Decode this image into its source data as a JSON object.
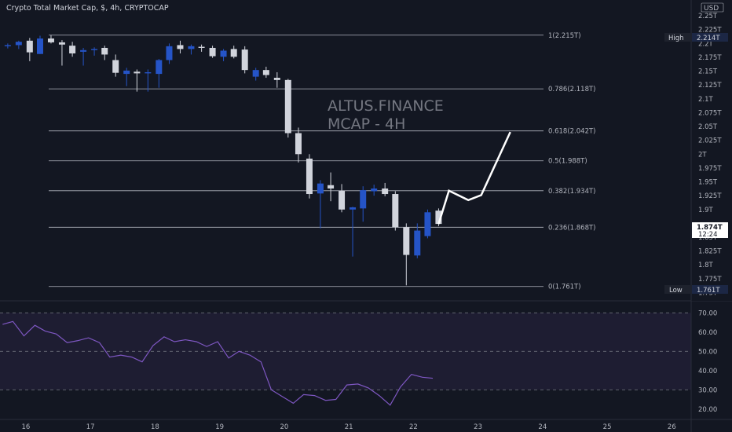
{
  "header": {
    "title": "Crypto Total Market Cap, $, 4h, CRYPTOCAP"
  },
  "axis": {
    "currency": "USD"
  },
  "price_axis": {
    "ticks": [
      "2.25T",
      "2.225T",
      "2.2T",
      "2.175T",
      "2.15T",
      "2.125T",
      "2.1T",
      "2.075T",
      "2.05T",
      "2.025T",
      "2T",
      "1.975T",
      "1.95T",
      "1.925T",
      "1.9T",
      "1.85T",
      "1.825T",
      "1.8T",
      "1.775T",
      "1.75T"
    ],
    "tick_values": [
      2.25,
      2.225,
      2.2,
      2.175,
      2.15,
      2.125,
      2.1,
      2.075,
      2.05,
      2.025,
      2.0,
      1.975,
      1.95,
      1.925,
      1.9,
      1.85,
      1.825,
      1.8,
      1.775,
      1.75
    ],
    "range": [
      1.745,
      2.27
    ],
    "high": {
      "label": "High",
      "value": "2.214T"
    },
    "low": {
      "label": "Low",
      "value": "1.761T"
    },
    "current": {
      "value": "1.874T",
      "countdown": "12:24"
    }
  },
  "annotation": {
    "line1": "ALTUS.FINANCE",
    "line2": "MCAP - 4H"
  },
  "colors": {
    "background": "#131722",
    "up": "#2554c7",
    "down": "#d1d4dc",
    "fib": "#b2b5be",
    "rsi": "#7e57c2",
    "projection": "#ffffff",
    "text": "#b2b5be"
  },
  "chart_data": [
    {
      "type": "candlestick",
      "title": "Crypto Total Market Cap, $, 4h, CRYPTOCAP",
      "x_unit": "day",
      "xlim": [
        15.6,
        26.3
      ],
      "ylim": [
        1.745,
        2.27
      ],
      "x_ticks": [
        "16",
        "17",
        "18",
        "19",
        "20",
        "21",
        "22",
        "23",
        "24",
        "25",
        "26"
      ],
      "x_tick_values": [
        16,
        17,
        18,
        19,
        20,
        21,
        22,
        23,
        24,
        25,
        26
      ],
      "candles": [
        {
          "x": 15.72,
          "o": 2.195,
          "h": 2.2,
          "l": 2.191,
          "c": 2.197
        },
        {
          "x": 15.89,
          "o": 2.197,
          "h": 2.205,
          "l": 2.19,
          "c": 2.203
        },
        {
          "x": 16.06,
          "o": 2.205,
          "h": 2.21,
          "l": 2.168,
          "c": 2.184
        },
        {
          "x": 16.22,
          "o": 2.181,
          "h": 2.214,
          "l": 2.181,
          "c": 2.209
        },
        {
          "x": 16.39,
          "o": 2.209,
          "h": 2.215,
          "l": 2.2,
          "c": 2.202
        },
        {
          "x": 16.56,
          "o": 2.202,
          "h": 2.206,
          "l": 2.16,
          "c": 2.198
        },
        {
          "x": 16.72,
          "o": 2.196,
          "h": 2.203,
          "l": 2.176,
          "c": 2.182
        },
        {
          "x": 16.89,
          "o": 2.185,
          "h": 2.192,
          "l": 2.16,
          "c": 2.188
        },
        {
          "x": 17.06,
          "o": 2.188,
          "h": 2.193,
          "l": 2.178,
          "c": 2.19
        },
        {
          "x": 17.22,
          "o": 2.192,
          "h": 2.196,
          "l": 2.17,
          "c": 2.18
        },
        {
          "x": 17.39,
          "o": 2.17,
          "h": 2.18,
          "l": 2.14,
          "c": 2.147
        },
        {
          "x": 17.56,
          "o": 2.145,
          "h": 2.156,
          "l": 2.123,
          "c": 2.151
        },
        {
          "x": 17.72,
          "o": 2.149,
          "h": 2.153,
          "l": 2.113,
          "c": 2.146
        },
        {
          "x": 17.89,
          "o": 2.146,
          "h": 2.153,
          "l": 2.113,
          "c": 2.148
        },
        {
          "x": 18.06,
          "o": 2.145,
          "h": 2.172,
          "l": 2.12,
          "c": 2.17
        },
        {
          "x": 18.22,
          "o": 2.17,
          "h": 2.2,
          "l": 2.163,
          "c": 2.195
        },
        {
          "x": 18.39,
          "o": 2.197,
          "h": 2.205,
          "l": 2.182,
          "c": 2.19
        },
        {
          "x": 18.56,
          "o": 2.19,
          "h": 2.198,
          "l": 2.18,
          "c": 2.195
        },
        {
          "x": 18.72,
          "o": 2.194,
          "h": 2.198,
          "l": 2.185,
          "c": 2.192
        },
        {
          "x": 18.89,
          "o": 2.192,
          "h": 2.196,
          "l": 2.174,
          "c": 2.177
        },
        {
          "x": 19.06,
          "o": 2.176,
          "h": 2.19,
          "l": 2.168,
          "c": 2.187
        },
        {
          "x": 19.22,
          "o": 2.19,
          "h": 2.196,
          "l": 2.173,
          "c": 2.176
        },
        {
          "x": 19.39,
          "o": 2.189,
          "h": 2.195,
          "l": 2.146,
          "c": 2.152
        },
        {
          "x": 19.56,
          "o": 2.14,
          "h": 2.156,
          "l": 2.133,
          "c": 2.152
        },
        {
          "x": 19.72,
          "o": 2.152,
          "h": 2.158,
          "l": 2.138,
          "c": 2.143
        },
        {
          "x": 19.89,
          "o": 2.138,
          "h": 2.148,
          "l": 2.12,
          "c": 2.134
        },
        {
          "x": 20.06,
          "o": 2.134,
          "h": 2.136,
          "l": 2.03,
          "c": 2.038
        },
        {
          "x": 20.22,
          "o": 2.038,
          "h": 2.048,
          "l": 1.985,
          "c": 2.0
        },
        {
          "x": 20.39,
          "o": 1.992,
          "h": 2.0,
          "l": 1.92,
          "c": 1.928
        },
        {
          "x": 20.56,
          "o": 1.929,
          "h": 1.953,
          "l": 1.866,
          "c": 1.947
        },
        {
          "x": 20.72,
          "o": 1.944,
          "h": 1.967,
          "l": 1.915,
          "c": 1.938
        },
        {
          "x": 20.89,
          "o": 1.934,
          "h": 1.946,
          "l": 1.895,
          "c": 1.9
        },
        {
          "x": 21.06,
          "o": 1.9,
          "h": 1.905,
          "l": 1.815,
          "c": 1.904
        },
        {
          "x": 21.22,
          "o": 1.902,
          "h": 1.942,
          "l": 1.878,
          "c": 1.935
        },
        {
          "x": 21.39,
          "o": 1.933,
          "h": 1.945,
          "l": 1.925,
          "c": 1.938
        },
        {
          "x": 21.56,
          "o": 1.938,
          "h": 1.948,
          "l": 1.924,
          "c": 1.928
        },
        {
          "x": 21.72,
          "o": 1.928,
          "h": 1.933,
          "l": 1.862,
          "c": 1.868
        },
        {
          "x": 21.89,
          "o": 1.868,
          "h": 1.875,
          "l": 1.763,
          "c": 1.818
        },
        {
          "x": 22.06,
          "o": 1.817,
          "h": 1.875,
          "l": 1.812,
          "c": 1.862
        },
        {
          "x": 22.22,
          "o": 1.852,
          "h": 1.9,
          "l": 1.848,
          "c": 1.895
        },
        {
          "x": 22.39,
          "o": 1.898,
          "h": 1.902,
          "l": 1.87,
          "c": 1.874
        }
      ],
      "fibonacci": [
        {
          "label": "1(2.215T)",
          "value": 2.215
        },
        {
          "label": "0.786(2.118T)",
          "value": 2.118
        },
        {
          "label": "0.618(2.042T)",
          "value": 2.042
        },
        {
          "label": "0.5(1.988T)",
          "value": 1.988
        },
        {
          "label": "0.382(1.934T)",
          "value": 1.934
        },
        {
          "label": "0.236(1.868T)",
          "value": 1.868
        },
        {
          "label": "0(1.761T)",
          "value": 1.761
        }
      ],
      "projection": {
        "x": [
          22.39,
          22.55,
          22.85,
          23.05,
          23.5
        ],
        "y": [
          1.874,
          1.934,
          1.917,
          1.926,
          2.04
        ]
      }
    },
    {
      "type": "line",
      "indicator": "RSI",
      "ylim": [
        15,
        75
      ],
      "y_ticks": [
        "70.00",
        "60.00",
        "50.00",
        "40.00",
        "30.00",
        "20.00"
      ],
      "y_tick_values": [
        70,
        60,
        50,
        40,
        30,
        20
      ],
      "band": [
        30,
        70
      ],
      "midline": 50,
      "x": [
        15.64,
        15.8,
        15.97,
        16.14,
        16.3,
        16.47,
        16.64,
        16.8,
        16.97,
        17.14,
        17.3,
        17.47,
        17.64,
        17.8,
        17.97,
        18.14,
        18.3,
        18.47,
        18.64,
        18.8,
        18.97,
        19.14,
        19.3,
        19.47,
        19.64,
        19.8,
        19.97,
        20.14,
        20.3,
        20.47,
        20.64,
        20.8,
        20.97,
        21.14,
        21.3,
        21.47,
        21.64,
        21.8,
        21.97,
        22.14,
        22.3
      ],
      "values": [
        64,
        65.5,
        58,
        63.5,
        60.5,
        59,
        54.5,
        55.5,
        57,
        54.5,
        47,
        48,
        47,
        44.5,
        53,
        57.5,
        55,
        56,
        55,
        52.5,
        55,
        46.5,
        50,
        48,
        44.5,
        30,
        26.5,
        23,
        27.5,
        27,
        24.5,
        25,
        32.5,
        33,
        31,
        27,
        22,
        31.5,
        38,
        36.5,
        36
      ]
    }
  ]
}
